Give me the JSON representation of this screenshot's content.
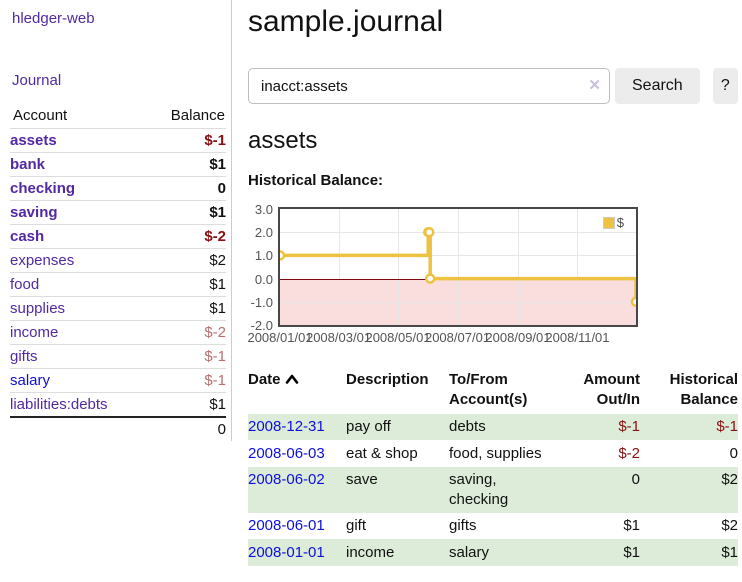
{
  "app": {
    "brand": "hledger-web"
  },
  "nav": {
    "journal": "Journal"
  },
  "sidebar": {
    "header": {
      "account": "Account",
      "balance": "Balance"
    },
    "accounts": [
      {
        "name": "assets",
        "balance": "$-1",
        "depth": 1,
        "bold": true,
        "balance_style": "neg-strong",
        "link": "purple"
      },
      {
        "name": "bank",
        "balance": "$1",
        "depth": 2,
        "bold": true,
        "balance_style": "pos",
        "link": "purple"
      },
      {
        "name": "checking",
        "balance": "0",
        "depth": 3,
        "bold": true,
        "balance_style": "pos",
        "link": "purple"
      },
      {
        "name": "saving",
        "balance": "$1",
        "depth": 3,
        "bold": true,
        "balance_style": "pos",
        "link": "purple"
      },
      {
        "name": "cash",
        "balance": "$-2",
        "depth": 2,
        "bold": true,
        "balance_style": "neg-strong",
        "link": "purple"
      },
      {
        "name": "expenses",
        "balance": "$2",
        "depth": 1,
        "bold": false,
        "balance_style": "pos",
        "link": "purple"
      },
      {
        "name": "food",
        "balance": "$1",
        "depth": 2,
        "bold": false,
        "balance_style": "pos",
        "link": "purple"
      },
      {
        "name": "supplies",
        "balance": "$1",
        "depth": 2,
        "bold": false,
        "balance_style": "pos",
        "link": "purple"
      },
      {
        "name": "income",
        "balance": "$-2",
        "depth": 1,
        "bold": false,
        "balance_style": "neg-soft",
        "link": "purple"
      },
      {
        "name": "gifts",
        "balance": "$-1",
        "depth": 2,
        "bold": false,
        "balance_style": "neg-soft",
        "link": "purple"
      },
      {
        "name": "salary",
        "balance": "$-1",
        "depth": 2,
        "bold": false,
        "balance_style": "neg-soft",
        "link": "blue"
      },
      {
        "name": "liabilities:debts",
        "balance": "$1",
        "depth": 1,
        "bold": false,
        "balance_style": "pos",
        "link": "purple"
      }
    ],
    "total": "0"
  },
  "header": {
    "title": "sample.journal"
  },
  "search": {
    "value": "inacct:assets",
    "clear_icon": "✕",
    "button": "Search",
    "help": "?"
  },
  "account_page": {
    "title": "assets",
    "chart_label": "Historical Balance:"
  },
  "chart_data": {
    "type": "line",
    "step": true,
    "title": "Historical Balance:",
    "series": [
      {
        "name": "$",
        "color": "#edc240",
        "points": [
          [
            "2008-01-01",
            1
          ],
          [
            "2008-06-01",
            2
          ],
          [
            "2008-06-02",
            2
          ],
          [
            "2008-06-03",
            0
          ],
          [
            "2008-12-31",
            -1
          ]
        ]
      }
    ],
    "ylim": [
      -2,
      3
    ],
    "ytick_labels": [
      "3.0",
      "2.0",
      "1.0",
      "0.0",
      "-1.0",
      "-2.0"
    ],
    "xtick_labels": [
      "2008/01/01",
      "2008/03/01",
      "2008/05/01",
      "2008/07/01",
      "2008/09/01",
      "2008/11/01"
    ],
    "x_range": [
      "2008-01-01",
      "2008-12-31"
    ],
    "grid": true,
    "legend_position": "top-right",
    "negative_region": true,
    "zero_line_color": "#7c0a0a",
    "negative_region_color": "#fadddd"
  },
  "register": {
    "headers": {
      "date": "Date",
      "description": "Description",
      "accounts": "To/From Account(s)",
      "amount": "Amount Out/In",
      "balance": "Historical Balance"
    },
    "sort": "ascending",
    "rows": [
      {
        "date": "2008-12-31",
        "description": "pay off",
        "accounts": "debts",
        "amount": "$-1",
        "amount_neg": true,
        "balance": "$-1",
        "balance_neg": true
      },
      {
        "date": "2008-06-03",
        "description": "eat & shop",
        "accounts": "food, supplies",
        "amount": "$-2",
        "amount_neg": true,
        "balance": "0",
        "balance_neg": false
      },
      {
        "date": "2008-06-02",
        "description": "save",
        "accounts": "saving, checking",
        "amount": "0",
        "amount_neg": false,
        "balance": "$2",
        "balance_neg": false
      },
      {
        "date": "2008-06-01",
        "description": "gift",
        "accounts": "gifts",
        "amount": "$1",
        "amount_neg": false,
        "balance": "$2",
        "balance_neg": false
      },
      {
        "date": "2008-01-01",
        "description": "income",
        "accounts": "salary",
        "amount": "$1",
        "amount_neg": false,
        "balance": "$1",
        "balance_neg": false
      }
    ]
  }
}
